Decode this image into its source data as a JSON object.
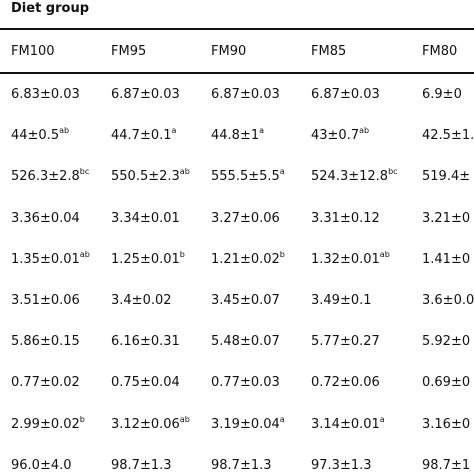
{
  "table": {
    "group_title": "Diet group",
    "columns": [
      "FM100",
      "FM95",
      "FM90",
      "FM85",
      "FM80"
    ],
    "rows": [
      [
        {
          "v": "6.83±0.03",
          "s": ""
        },
        {
          "v": "6.87±0.03",
          "s": ""
        },
        {
          "v": "6.87±0.03",
          "s": ""
        },
        {
          "v": "6.87±0.03",
          "s": ""
        },
        {
          "v": "6.9±0",
          "s": ""
        }
      ],
      [
        {
          "v": "44±0.5",
          "s": "ab"
        },
        {
          "v": "44.7±0.1",
          "s": "a"
        },
        {
          "v": "44.8±1",
          "s": "a"
        },
        {
          "v": "43±0.7",
          "s": "ab"
        },
        {
          "v": "42.5±1.",
          "s": ""
        }
      ],
      [
        {
          "v": "526.3±2.8",
          "s": "bc"
        },
        {
          "v": "550.5±2.3",
          "s": "ab"
        },
        {
          "v": "555.5±5.5",
          "s": "a"
        },
        {
          "v": "524.3±12.8",
          "s": "bc"
        },
        {
          "v": "519.4±",
          "s": ""
        }
      ],
      [
        {
          "v": "3.36±0.04",
          "s": ""
        },
        {
          "v": "3.34±0.01",
          "s": ""
        },
        {
          "v": "3.27±0.06",
          "s": ""
        },
        {
          "v": "3.31±0.12",
          "s": ""
        },
        {
          "v": "3.21±0",
          "s": ""
        }
      ],
      [
        {
          "v": "1.35±0.01",
          "s": "ab"
        },
        {
          "v": "1.25±0.01",
          "s": "b"
        },
        {
          "v": "1.21±0.02",
          "s": "b"
        },
        {
          "v": "1.32±0.01",
          "s": "ab"
        },
        {
          "v": "1.41±0",
          "s": ""
        }
      ],
      [
        {
          "v": "3.51±0.06",
          "s": ""
        },
        {
          "v": "3.4±0.02",
          "s": ""
        },
        {
          "v": "3.45±0.07",
          "s": ""
        },
        {
          "v": "3.49±0.1",
          "s": ""
        },
        {
          "v": "3.6±0.0",
          "s": ""
        }
      ],
      [
        {
          "v": "5.86±0.15",
          "s": ""
        },
        {
          "v": "6.16±0.31",
          "s": ""
        },
        {
          "v": "5.48±0.07",
          "s": ""
        },
        {
          "v": "5.77±0.27",
          "s": ""
        },
        {
          "v": "5.92±0",
          "s": ""
        }
      ],
      [
        {
          "v": "0.77±0.02",
          "s": ""
        },
        {
          "v": "0.75±0.04",
          "s": ""
        },
        {
          "v": "0.77±0.03",
          "s": ""
        },
        {
          "v": "0.72±0.06",
          "s": ""
        },
        {
          "v": "0.69±0",
          "s": ""
        }
      ],
      [
        {
          "v": "2.99±0.02",
          "s": "b"
        },
        {
          "v": "3.12±0.06",
          "s": "ab"
        },
        {
          "v": "3.19±0.04",
          "s": "a"
        },
        {
          "v": "3.14±0.01",
          "s": "a"
        },
        {
          "v": "3.16±0",
          "s": ""
        }
      ],
      [
        {
          "v": "96.0±4.0",
          "s": ""
        },
        {
          "v": "98.7±1.3",
          "s": ""
        },
        {
          "v": "98.7±1.3",
          "s": ""
        },
        {
          "v": "97.3±1.3",
          "s": ""
        },
        {
          "v": "98.7±1",
          "s": ""
        }
      ]
    ]
  }
}
